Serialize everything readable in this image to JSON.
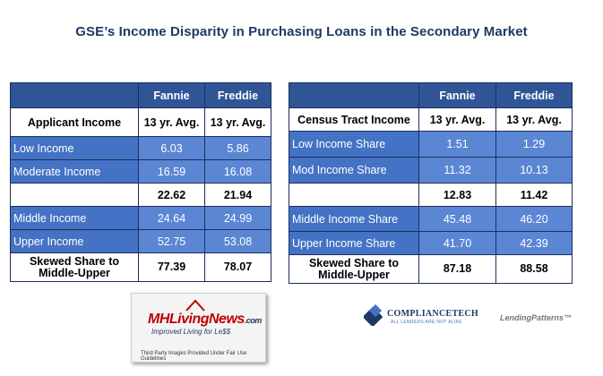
{
  "title": "GSE’s Income Disparity in Purchasing Loans in the Secondary Market",
  "table_applicant": {
    "col1": "Fannie",
    "col2": "Freddie",
    "header": {
      "label": "Applicant Income",
      "c1": "13 yr. Avg.",
      "c2": "13 yr. Avg."
    },
    "rows": [
      {
        "label": "Low Income",
        "c1": "6.03",
        "c2": "5.86"
      },
      {
        "label": "Moderate Income",
        "c1": "16.59",
        "c2": "16.08"
      },
      {
        "label": "",
        "c1": "22.62",
        "c2": "21.94"
      },
      {
        "label": "Middle Income",
        "c1": "24.64",
        "c2": "24.99"
      },
      {
        "label": "Upper Income",
        "c1": "52.75",
        "c2": "53.08"
      },
      {
        "label": "Skewed Share to Middle-Upper",
        "c1": "77.39",
        "c2": "78.07"
      }
    ]
  },
  "table_census": {
    "col1": "Fannie",
    "col2": "Freddie",
    "header": {
      "label": "Census Tract Income",
      "c1": "13 yr. Avg.",
      "c2": "13 yr. Avg."
    },
    "rows": [
      {
        "label": "Low Income Share",
        "c1": "1.51",
        "c2": "1.29"
      },
      {
        "label": "Mod Income Share",
        "c1": "11.32",
        "c2": "10.13"
      },
      {
        "label": "",
        "c1": "12.83",
        "c2": "11.42"
      },
      {
        "label": "Middle Income Share",
        "c1": "45.48",
        "c2": "46.20"
      },
      {
        "label": "Upper Income Share",
        "c1": "41.70",
        "c2": "42.39"
      },
      {
        "label": "Skewed Share to Middle-Upper",
        "c1": "87.18",
        "c2": "88.58"
      }
    ]
  },
  "logos": {
    "mh_name": "MHLivingNews",
    "mh_suffix": ".com",
    "mh_tagline": "Improved Living for Le$$",
    "fair_use": "Third Party Images Provided Under Fair Use Guidelines",
    "ct_name": "COMPLIANCETECH",
    "ct_sub": "ALL LENDERS ARE NOT ALIKE",
    "lp_name": "LendingPatterns™"
  },
  "colors": {
    "header_blue": "#2f5597",
    "row_blue": "#4472c4",
    "title": "#1f3864"
  }
}
